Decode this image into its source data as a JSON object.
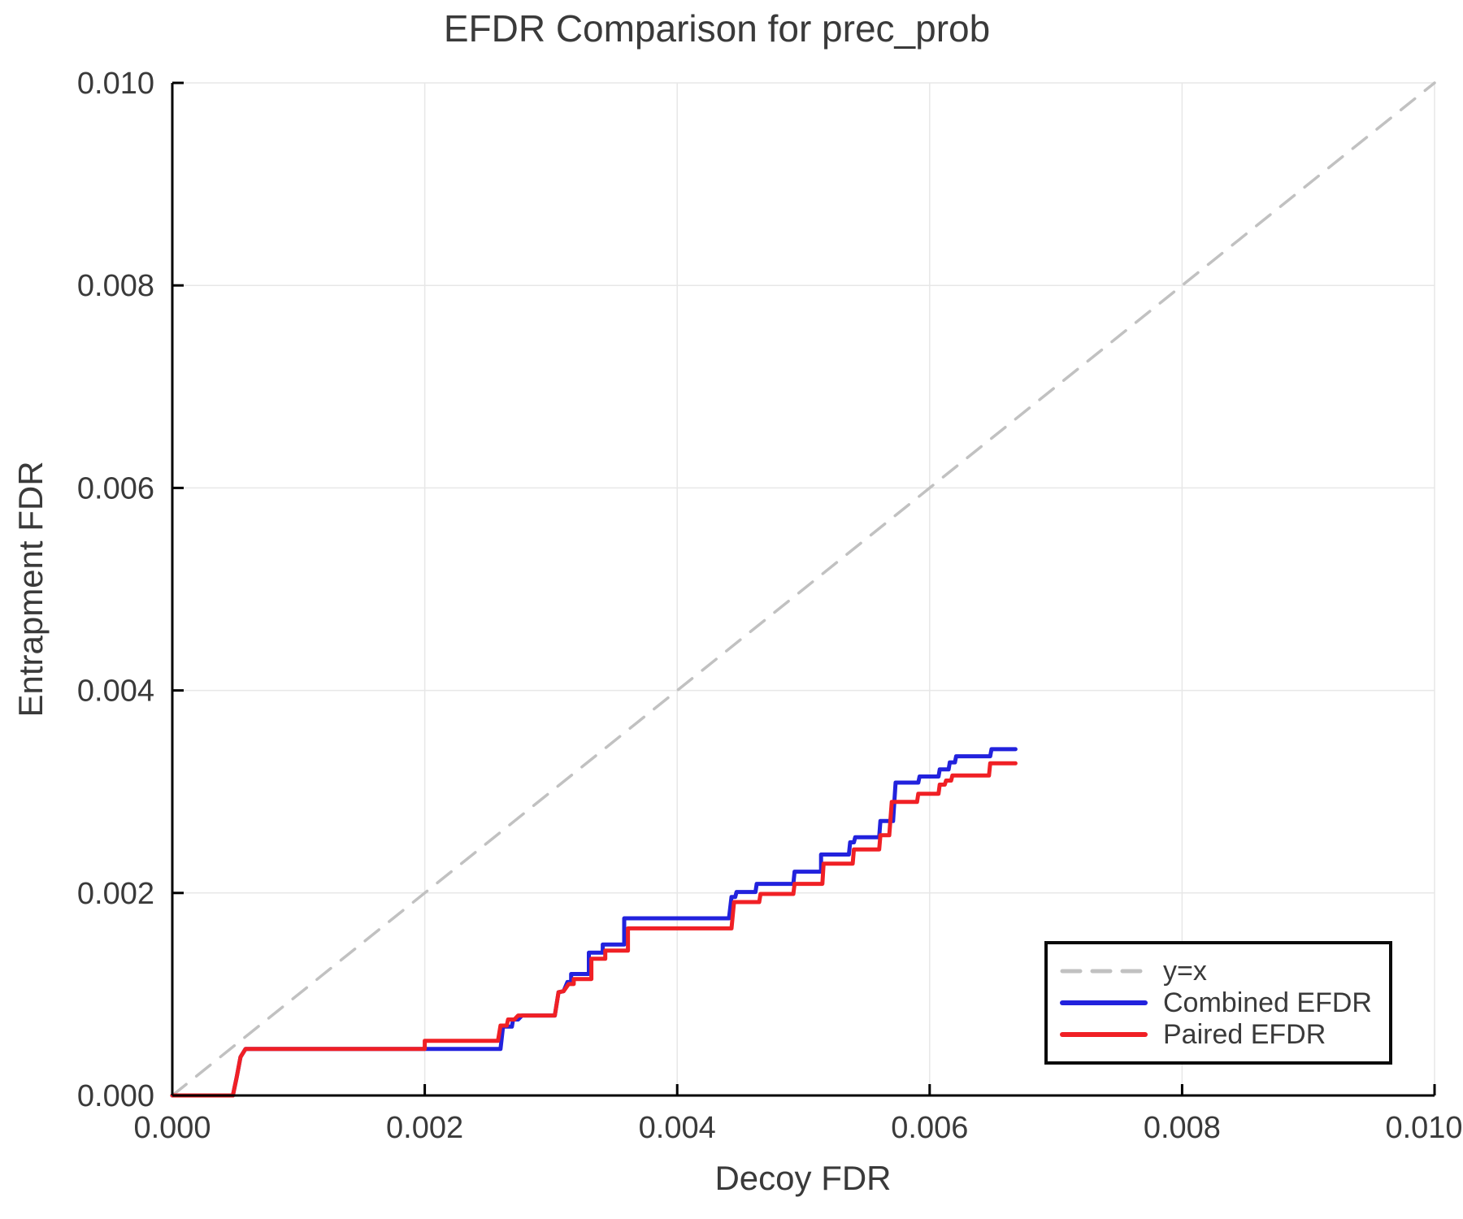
{
  "chart_data": {
    "type": "line",
    "title": "EFDR Comparison for prec_prob",
    "xlabel": "Decoy FDR",
    "ylabel": "Entrapment FDR",
    "xlim": [
      0.0,
      0.01
    ],
    "ylim": [
      0.0,
      0.01
    ],
    "grid": true,
    "grid_color": "#e7e7e7",
    "spine_color": "#000000",
    "text_color": "#3a3a3a",
    "legend_position": "lower right",
    "x_axis": {
      "ticks": [
        0.0,
        0.002,
        0.004,
        0.006,
        0.008,
        0.01
      ],
      "tick_labels": [
        "0.000",
        "0.002",
        "0.004",
        "0.006",
        "0.008",
        "0.010"
      ]
    },
    "y_axis": {
      "ticks": [
        0.0,
        0.002,
        0.004,
        0.006,
        0.008,
        0.01
      ],
      "tick_labels": [
        "0.000",
        "0.002",
        "0.004",
        "0.006",
        "0.008",
        "0.010"
      ]
    },
    "series": [
      {
        "name": "y=x",
        "style": "dashed",
        "color": "#c1c1c1",
        "width": 3.5,
        "points": [
          [
            0.0,
            0.0
          ],
          [
            0.01,
            0.01
          ]
        ]
      },
      {
        "name": "Combined EFDR",
        "style": "solid",
        "color": "#2222dd",
        "width": 5,
        "points": [
          [
            0.0,
            0.0
          ],
          [
            0.00048,
            0.0
          ],
          [
            0.00051,
            0.00018
          ],
          [
            0.00054,
            0.00038
          ],
          [
            0.00058,
            0.00046
          ],
          [
            0.0026,
            0.00046
          ],
          [
            0.00262,
            0.00068
          ],
          [
            0.00269,
            0.00068
          ],
          [
            0.0027,
            0.00075
          ],
          [
            0.00274,
            0.00075
          ],
          [
            0.00277,
            0.00079
          ],
          [
            0.00303,
            0.00079
          ],
          [
            0.00306,
            0.00102
          ],
          [
            0.0031,
            0.00103
          ],
          [
            0.00313,
            0.00112
          ],
          [
            0.00316,
            0.00112
          ],
          [
            0.00316,
            0.0012
          ],
          [
            0.0033,
            0.0012
          ],
          [
            0.0033,
            0.00141
          ],
          [
            0.00341,
            0.00141
          ],
          [
            0.00341,
            0.00149
          ],
          [
            0.00358,
            0.00149
          ],
          [
            0.00358,
            0.00175
          ],
          [
            0.00441,
            0.00175
          ],
          [
            0.00443,
            0.00196
          ],
          [
            0.00446,
            0.00196
          ],
          [
            0.00447,
            0.00201
          ],
          [
            0.00462,
            0.00201
          ],
          [
            0.00463,
            0.00209
          ],
          [
            0.00492,
            0.00209
          ],
          [
            0.00493,
            0.00221
          ],
          [
            0.00514,
            0.00221
          ],
          [
            0.00514,
            0.00238
          ],
          [
            0.00536,
            0.00238
          ],
          [
            0.00537,
            0.0025
          ],
          [
            0.0054,
            0.0025
          ],
          [
            0.00541,
            0.00255
          ],
          [
            0.0056,
            0.00255
          ],
          [
            0.00561,
            0.00271
          ],
          [
            0.00571,
            0.00271
          ],
          [
            0.00573,
            0.00309
          ],
          [
            0.00591,
            0.00309
          ],
          [
            0.00592,
            0.00315
          ],
          [
            0.00607,
            0.00315
          ],
          [
            0.00608,
            0.00322
          ],
          [
            0.00615,
            0.00322
          ],
          [
            0.00616,
            0.00329
          ],
          [
            0.0062,
            0.00329
          ],
          [
            0.00621,
            0.00335
          ],
          [
            0.00648,
            0.00335
          ],
          [
            0.00649,
            0.00342
          ],
          [
            0.00668,
            0.00342
          ]
        ]
      },
      {
        "name": "Paired EFDR",
        "style": "solid",
        "color": "#f02025",
        "width": 5,
        "points": [
          [
            0.0,
            0.0
          ],
          [
            0.00048,
            0.0
          ],
          [
            0.00051,
            0.00018
          ],
          [
            0.00054,
            0.00038
          ],
          [
            0.00058,
            0.00046
          ],
          [
            0.002,
            0.00046
          ],
          [
            0.002,
            0.00054
          ],
          [
            0.00258,
            0.00054
          ],
          [
            0.0026,
            0.00069
          ],
          [
            0.00265,
            0.00069
          ],
          [
            0.00266,
            0.00075
          ],
          [
            0.00271,
            0.00075
          ],
          [
            0.00274,
            0.00079
          ],
          [
            0.00303,
            0.00079
          ],
          [
            0.00306,
            0.00102
          ],
          [
            0.0031,
            0.00103
          ],
          [
            0.00314,
            0.0011
          ],
          [
            0.00318,
            0.0011
          ],
          [
            0.00318,
            0.00115
          ],
          [
            0.00332,
            0.00115
          ],
          [
            0.00332,
            0.00135
          ],
          [
            0.00343,
            0.00135
          ],
          [
            0.00343,
            0.00143
          ],
          [
            0.00361,
            0.00143
          ],
          [
            0.00361,
            0.00165
          ],
          [
            0.00443,
            0.00165
          ],
          [
            0.00445,
            0.00191
          ],
          [
            0.00465,
            0.00191
          ],
          [
            0.00466,
            0.00199
          ],
          [
            0.00492,
            0.00199
          ],
          [
            0.00493,
            0.00209
          ],
          [
            0.00515,
            0.00209
          ],
          [
            0.00516,
            0.00229
          ],
          [
            0.00539,
            0.00229
          ],
          [
            0.0054,
            0.00243
          ],
          [
            0.0056,
            0.00243
          ],
          [
            0.00561,
            0.00257
          ],
          [
            0.00568,
            0.00257
          ],
          [
            0.0057,
            0.0029
          ],
          [
            0.0059,
            0.0029
          ],
          [
            0.00591,
            0.00298
          ],
          [
            0.00607,
            0.00298
          ],
          [
            0.00608,
            0.00307
          ],
          [
            0.00612,
            0.00307
          ],
          [
            0.00613,
            0.00311
          ],
          [
            0.00617,
            0.00311
          ],
          [
            0.00618,
            0.00316
          ],
          [
            0.00647,
            0.00316
          ],
          [
            0.00648,
            0.00328
          ],
          [
            0.00668,
            0.00328
          ]
        ]
      }
    ]
  }
}
